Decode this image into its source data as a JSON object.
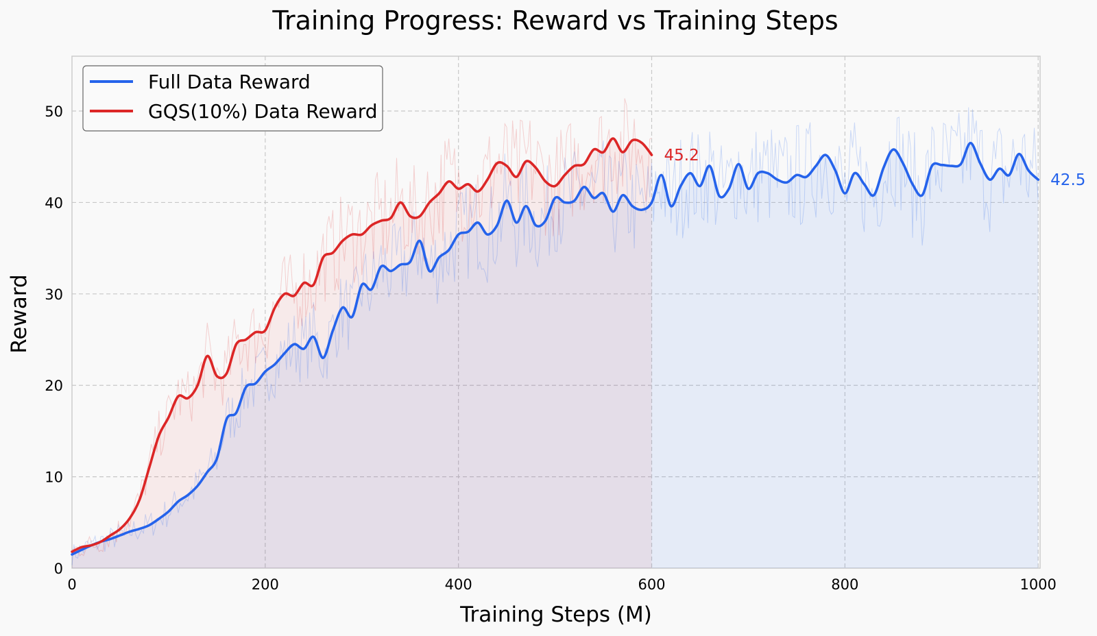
{
  "chart_data": {
    "type": "line",
    "title": "Training Progress: Reward vs Training Steps",
    "xlabel": "Training Steps (M)",
    "ylabel": "Reward",
    "xlim": [
      0,
      1002
    ],
    "ylim": [
      0,
      56
    ],
    "xticks": [
      "0",
      "200",
      "400",
      "600",
      "800",
      "1000"
    ],
    "yticks": [
      "0",
      "10",
      "20",
      "30",
      "40",
      "50"
    ],
    "grid": true,
    "legend_position": "top-left",
    "series": [
      {
        "name": "Full Data Reward",
        "color": "#2563eb",
        "end_label": "42.5",
        "x": [
          0,
          10,
          20,
          30,
          40,
          50,
          60,
          70,
          80,
          90,
          100,
          110,
          120,
          130,
          140,
          150,
          160,
          170,
          180,
          190,
          200,
          210,
          220,
          230,
          240,
          250,
          260,
          270,
          280,
          290,
          300,
          310,
          320,
          330,
          340,
          350,
          360,
          370,
          380,
          390,
          400,
          410,
          420,
          430,
          440,
          450,
          460,
          470,
          480,
          490,
          500,
          510,
          520,
          530,
          540,
          550,
          560,
          570,
          580,
          590,
          600,
          610,
          620,
          630,
          640,
          650,
          660,
          670,
          680,
          690,
          700,
          710,
          720,
          730,
          740,
          750,
          760,
          770,
          780,
          790,
          800,
          810,
          820,
          830,
          840,
          850,
          860,
          870,
          880,
          890,
          900,
          910,
          920,
          930,
          940,
          950,
          960,
          970,
          980,
          990,
          1000
        ],
        "values": [
          1.5,
          2.0,
          2.5,
          2.9,
          3.2,
          3.6,
          4.0,
          4.3,
          4.7,
          5.4,
          6.2,
          7.3,
          8.0,
          9.0,
          10.5,
          12.0,
          16.3,
          17.0,
          19.8,
          20.2,
          21.5,
          22.3,
          23.5,
          24.5,
          24.0,
          25.3,
          23.0,
          26.0,
          28.5,
          27.5,
          31.0,
          30.5,
          33.0,
          32.5,
          33.2,
          33.5,
          35.8,
          32.5,
          34.0,
          34.8,
          36.5,
          36.8,
          37.8,
          36.5,
          37.5,
          40.2,
          37.8,
          39.6,
          37.5,
          38.0,
          40.5,
          40.0,
          40.2,
          41.7,
          40.5,
          41.0,
          39.0,
          40.8,
          39.6,
          39.2,
          40.0,
          43.0,
          39.6,
          41.8,
          43.2,
          41.8,
          44.0,
          40.7,
          41.5,
          44.2,
          41.5,
          43.2,
          43.2,
          42.5,
          42.2,
          43.0,
          42.8,
          44.0,
          45.2,
          43.5,
          41.0,
          43.2,
          42.0,
          40.8,
          43.8,
          45.8,
          44.3,
          42.0,
          40.8,
          44.0,
          44.1,
          44.0,
          44.2,
          46.5,
          44.3,
          42.5,
          43.7,
          43.0,
          45.3,
          43.5,
          42.5
        ]
      },
      {
        "name": "GQS(10%) Data Reward",
        "color": "#dc2626",
        "end_label": "45.2",
        "x": [
          0,
          10,
          20,
          30,
          40,
          50,
          60,
          70,
          80,
          90,
          100,
          110,
          120,
          130,
          140,
          150,
          160,
          170,
          180,
          190,
          200,
          210,
          220,
          230,
          240,
          250,
          260,
          270,
          280,
          290,
          300,
          310,
          320,
          330,
          340,
          350,
          360,
          370,
          380,
          390,
          400,
          410,
          420,
          430,
          440,
          450,
          460,
          470,
          480,
          490,
          500,
          510,
          520,
          530,
          540,
          550,
          560,
          570,
          580,
          590,
          600
        ],
        "values": [
          1.8,
          2.3,
          2.5,
          2.9,
          3.6,
          4.3,
          5.5,
          7.5,
          11.0,
          14.5,
          16.5,
          18.8,
          18.6,
          20.0,
          23.2,
          21.0,
          21.3,
          24.5,
          25.0,
          25.8,
          26.0,
          28.5,
          30.0,
          29.8,
          31.2,
          31.0,
          34.0,
          34.5,
          35.8,
          36.5,
          36.5,
          37.5,
          38.0,
          38.3,
          40.0,
          38.5,
          38.5,
          40.0,
          41.0,
          42.3,
          41.5,
          42.0,
          41.2,
          42.5,
          44.3,
          44.0,
          42.8,
          44.5,
          43.8,
          42.3,
          41.8,
          43.0,
          44.0,
          44.2,
          45.8,
          45.5,
          47.0,
          45.5,
          46.8,
          46.5,
          45.2
        ]
      }
    ]
  }
}
